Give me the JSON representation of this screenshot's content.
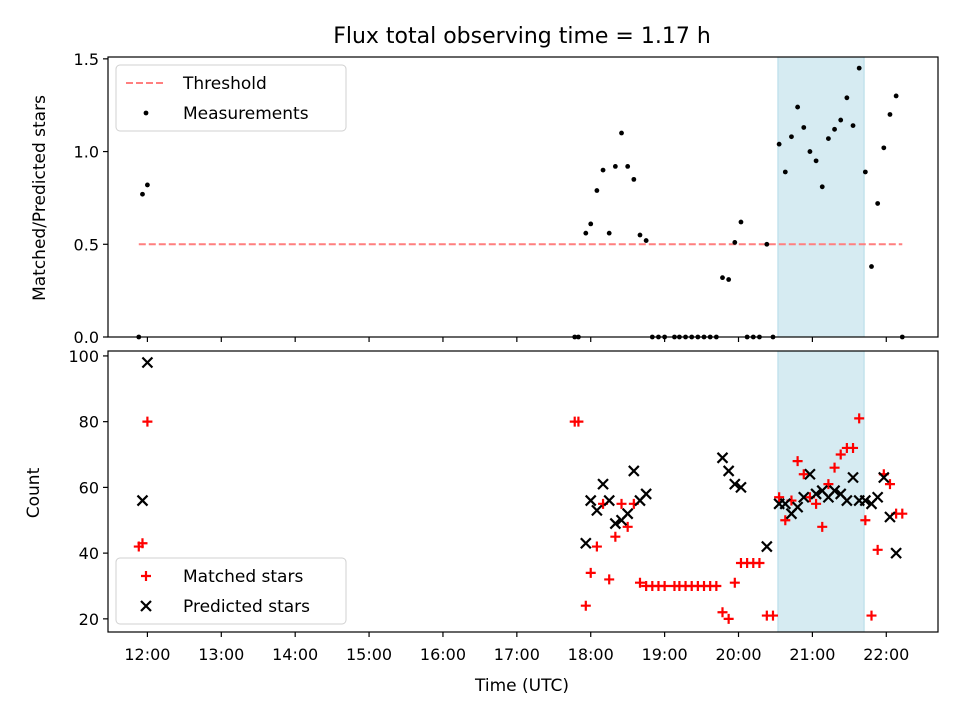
{
  "chart_data": [
    {
      "type": "scatter",
      "title": "Flux total observing time = 1.17 h",
      "xlabel": "",
      "ylabel": "Matched/Predicted stars",
      "xlim": [
        "11:28",
        "22:42"
      ],
      "ylim": [
        0,
        1.51
      ],
      "yticks": [
        0.0,
        0.5,
        1.0,
        1.5
      ],
      "ytick_labels": [
        "0.0",
        "0.5",
        "1.0",
        "1.5"
      ],
      "xticks": [
        "12:00",
        "13:00",
        "14:00",
        "15:00",
        "16:00",
        "17:00",
        "18:00",
        "19:00",
        "20:00",
        "21:00",
        "22:00"
      ],
      "show_xtick_labels": false,
      "highlight_span": {
        "x": [
          "20:32",
          "21:42"
        ],
        "color": "#add8e6",
        "alpha": 0.5
      },
      "legend": {
        "position": "top-left",
        "entries": [
          {
            "label": "Threshold",
            "marker": "dashed-line",
            "color": "#ff7f7f"
          },
          {
            "label": "Measurements",
            "marker": "dot",
            "color": "#000000"
          }
        ]
      },
      "series": [
        {
          "name": "Threshold",
          "kind": "line",
          "color": "#ff7f7f",
          "points": [
            [
              "11:53",
              0.5
            ],
            [
              "22:13",
              0.5
            ]
          ]
        },
        {
          "name": "Measurements",
          "kind": "dot",
          "color": "#000000",
          "points": [
            [
              "11:53",
              0.0
            ],
            [
              "11:56",
              0.77
            ],
            [
              "12:00",
              0.82
            ],
            [
              "17:47",
              0.0
            ],
            [
              "17:50",
              0.0
            ],
            [
              "17:56",
              0.56
            ],
            [
              "18:00",
              0.61
            ],
            [
              "18:05",
              0.79
            ],
            [
              "18:10",
              0.9
            ],
            [
              "18:15",
              0.56
            ],
            [
              "18:20",
              0.92
            ],
            [
              "18:25",
              1.1
            ],
            [
              "18:30",
              0.92
            ],
            [
              "18:35",
              0.85
            ],
            [
              "18:40",
              0.55
            ],
            [
              "18:45",
              0.52
            ],
            [
              "18:50",
              0.0
            ],
            [
              "18:55",
              0.0
            ],
            [
              "19:00",
              0.0
            ],
            [
              "19:08",
              0.0
            ],
            [
              "19:12",
              0.0
            ],
            [
              "19:17",
              0.0
            ],
            [
              "19:22",
              0.0
            ],
            [
              "19:27",
              0.0
            ],
            [
              "19:32",
              0.0
            ],
            [
              "19:37",
              0.0
            ],
            [
              "19:42",
              0.0
            ],
            [
              "19:47",
              0.32
            ],
            [
              "19:52",
              0.31
            ],
            [
              "19:57",
              0.51
            ],
            [
              "20:02",
              0.62
            ],
            [
              "20:07",
              0.0
            ],
            [
              "20:12",
              0.0
            ],
            [
              "20:17",
              0.0
            ],
            [
              "20:23",
              0.5
            ],
            [
              "20:28",
              0.0
            ],
            [
              "20:33",
              1.04
            ],
            [
              "20:38",
              0.89
            ],
            [
              "20:43",
              1.08
            ],
            [
              "20:48",
              1.24
            ],
            [
              "20:53",
              1.13
            ],
            [
              "20:58",
              1.0
            ],
            [
              "21:03",
              0.95
            ],
            [
              "21:08",
              0.81
            ],
            [
              "21:13",
              1.07
            ],
            [
              "21:18",
              1.12
            ],
            [
              "21:23",
              1.17
            ],
            [
              "21:28",
              1.29
            ],
            [
              "21:33",
              1.14
            ],
            [
              "21:38",
              1.45
            ],
            [
              "21:43",
              0.89
            ],
            [
              "21:48",
              0.38
            ],
            [
              "21:53",
              0.72
            ],
            [
              "21:58",
              1.02
            ],
            [
              "22:03",
              1.2
            ],
            [
              "22:08",
              1.3
            ],
            [
              "22:13",
              0.0
            ]
          ]
        }
      ]
    },
    {
      "type": "scatter",
      "title": "",
      "xlabel": "Time (UTC)",
      "ylabel": "Count",
      "xlim": [
        "11:28",
        "22:42"
      ],
      "ylim": [
        16,
        101.5
      ],
      "yticks": [
        20,
        40,
        60,
        80,
        100
      ],
      "ytick_labels": [
        "20",
        "40",
        "60",
        "80",
        "100"
      ],
      "xticks": [
        "12:00",
        "13:00",
        "14:00",
        "15:00",
        "16:00",
        "17:00",
        "18:00",
        "19:00",
        "20:00",
        "21:00",
        "22:00"
      ],
      "xtick_labels": [
        "12:00",
        "13:00",
        "14:00",
        "15:00",
        "16:00",
        "17:00",
        "18:00",
        "19:00",
        "20:00",
        "21:00",
        "22:00"
      ],
      "highlight_span": {
        "x": [
          "20:32",
          "21:42"
        ],
        "color": "#add8e6",
        "alpha": 0.5
      },
      "legend": {
        "position": "bottom-left",
        "entries": [
          {
            "label": "Matched stars",
            "marker": "plus",
            "color": "#ff0000"
          },
          {
            "label": "Predicted stars",
            "marker": "x",
            "color": "#000000"
          }
        ]
      },
      "series": [
        {
          "name": "Matched stars",
          "kind": "plus",
          "color": "#ff0000",
          "points": [
            [
              "11:53",
              42
            ],
            [
              "11:56",
              43
            ],
            [
              "12:00",
              80
            ],
            [
              "17:47",
              80
            ],
            [
              "17:50",
              80
            ],
            [
              "17:56",
              24
            ],
            [
              "18:00",
              34
            ],
            [
              "18:05",
              42
            ],
            [
              "18:10",
              55
            ],
            [
              "18:15",
              32
            ],
            [
              "18:20",
              45
            ],
            [
              "18:25",
              55
            ],
            [
              "18:30",
              48
            ],
            [
              "18:35",
              55
            ],
            [
              "18:40",
              31
            ],
            [
              "18:45",
              30
            ],
            [
              "18:50",
              30
            ],
            [
              "18:55",
              30
            ],
            [
              "19:00",
              30
            ],
            [
              "19:08",
              30
            ],
            [
              "19:12",
              30
            ],
            [
              "19:17",
              30
            ],
            [
              "19:22",
              30
            ],
            [
              "19:27",
              30
            ],
            [
              "19:32",
              30
            ],
            [
              "19:37",
              30
            ],
            [
              "19:42",
              30
            ],
            [
              "19:47",
              22
            ],
            [
              "19:52",
              20
            ],
            [
              "19:57",
              31
            ],
            [
              "20:02",
              37
            ],
            [
              "20:07",
              37
            ],
            [
              "20:12",
              37
            ],
            [
              "20:17",
              37
            ],
            [
              "20:23",
              21
            ],
            [
              "20:28",
              21
            ],
            [
              "20:33",
              57
            ],
            [
              "20:38",
              50
            ],
            [
              "20:43",
              56
            ],
            [
              "20:48",
              68
            ],
            [
              "20:53",
              64
            ],
            [
              "20:58",
              57
            ],
            [
              "21:03",
              55
            ],
            [
              "21:08",
              48
            ],
            [
              "21:13",
              61
            ],
            [
              "21:18",
              66
            ],
            [
              "21:23",
              70
            ],
            [
              "21:28",
              72
            ],
            [
              "21:33",
              72
            ],
            [
              "21:38",
              81
            ],
            [
              "21:43",
              50
            ],
            [
              "21:48",
              21
            ],
            [
              "21:53",
              41
            ],
            [
              "21:58",
              64
            ],
            [
              "22:03",
              61
            ],
            [
              "22:08",
              52
            ],
            [
              "22:13",
              52
            ]
          ]
        },
        {
          "name": "Predicted stars",
          "kind": "x",
          "color": "#000000",
          "points": [
            [
              "11:56",
              56
            ],
            [
              "12:00",
              98
            ],
            [
              "17:56",
              43
            ],
            [
              "18:00",
              56
            ],
            [
              "18:05",
              53
            ],
            [
              "18:10",
              61
            ],
            [
              "18:15",
              56
            ],
            [
              "18:20",
              49
            ],
            [
              "18:25",
              50
            ],
            [
              "18:30",
              52
            ],
            [
              "18:35",
              65
            ],
            [
              "18:40",
              56
            ],
            [
              "18:45",
              58
            ],
            [
              "19:47",
              69
            ],
            [
              "19:52",
              65
            ],
            [
              "19:57",
              61
            ],
            [
              "20:02",
              60
            ],
            [
              "20:23",
              42
            ],
            [
              "20:33",
              55
            ],
            [
              "20:38",
              55
            ],
            [
              "20:43",
              52
            ],
            [
              "20:48",
              54
            ],
            [
              "20:53",
              57
            ],
            [
              "20:58",
              64
            ],
            [
              "21:03",
              58
            ],
            [
              "21:08",
              59
            ],
            [
              "21:13",
              57
            ],
            [
              "21:18",
              59
            ],
            [
              "21:23",
              58
            ],
            [
              "21:28",
              56
            ],
            [
              "21:33",
              63
            ],
            [
              "21:38",
              56
            ],
            [
              "21:43",
              56
            ],
            [
              "21:48",
              55
            ],
            [
              "21:53",
              57
            ],
            [
              "21:58",
              63
            ],
            [
              "22:03",
              51
            ],
            [
              "22:08",
              40
            ]
          ]
        }
      ]
    }
  ]
}
